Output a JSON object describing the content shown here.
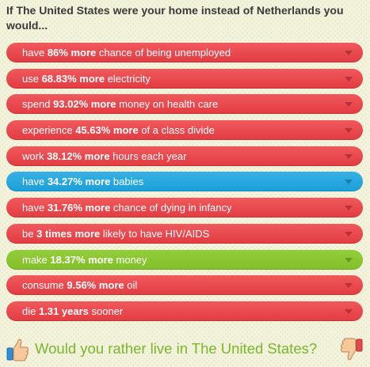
{
  "header": {
    "title": "If The United States were your home instead of Netherlands you would..."
  },
  "facts": [
    {
      "pre": "have ",
      "bold": "86% more",
      "post": " chance of being unemployed",
      "color": "#e8474c"
    },
    {
      "pre": "use ",
      "bold": "68.83% more",
      "post": " electricity",
      "color": "#e8474c"
    },
    {
      "pre": "spend ",
      "bold": "93.02% more",
      "post": " money on health care",
      "color": "#e8474c"
    },
    {
      "pre": "experience ",
      "bold": "45.63% more",
      "post": " of a class divide",
      "color": "#e8474c"
    },
    {
      "pre": "work ",
      "bold": "38.12% more",
      "post": " hours each year",
      "color": "#e8474c"
    },
    {
      "pre": "have ",
      "bold": "34.27% more",
      "post": " babies",
      "color": "#27a7df"
    },
    {
      "pre": "have ",
      "bold": "31.76% more",
      "post": " chance of dying in infancy",
      "color": "#e8474c"
    },
    {
      "pre": "be ",
      "bold": "3 times more",
      "post": " likely to have HIV/AIDS",
      "color": "#e8474c"
    },
    {
      "pre": "make ",
      "bold": "18.37% more",
      "post": " money",
      "color": "#8cc633"
    },
    {
      "pre": "consume ",
      "bold": "9.56% more",
      "post": " oil",
      "color": "#e8474c"
    },
    {
      "pre": "die ",
      "bold": "1.31 years",
      "post": " sooner",
      "color": "#e8474c"
    }
  ],
  "poll": {
    "question": "Would you rather live in The United States?",
    "yes_icon": "thumbs-up-icon",
    "no_icon": "thumbs-down-icon",
    "question_color": "#7ab52c"
  },
  "colors": {
    "negative": "#e8474c",
    "neutral": "#27a7df",
    "positive": "#8cc633",
    "background": "#f4f4dc"
  }
}
